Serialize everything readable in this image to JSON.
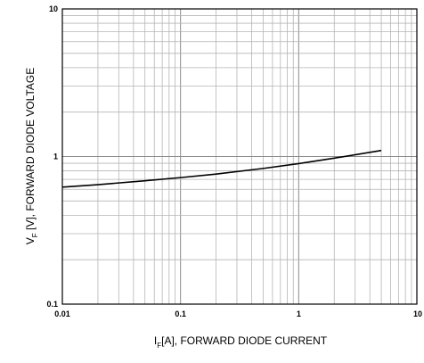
{
  "chart_data": {
    "type": "line",
    "x_scale": "log",
    "y_scale": "log",
    "xlim": [
      0.01,
      10
    ],
    "ylim": [
      0.1,
      10
    ],
    "grid": true,
    "x_ticks": [
      {
        "value": 0.01,
        "label": "0.01"
      },
      {
        "value": 0.1,
        "label": "0.1"
      },
      {
        "value": 1,
        "label": "1"
      },
      {
        "value": 10,
        "label": "10"
      }
    ],
    "y_ticks": [
      {
        "value": 0.1,
        "label": "0.1"
      },
      {
        "value": 1,
        "label": "1"
      },
      {
        "value": 10,
        "label": "10"
      }
    ],
    "xlabel": {
      "symbol": "I",
      "subscript": "F",
      "rest": "[A], FORWARD DIODE CURRENT"
    },
    "ylabel": {
      "symbol": "V",
      "subscript": "F",
      "rest": " [V], FORWARD DIODE VOLTAGE"
    },
    "series": [
      {
        "x": [
          0.01,
          0.02,
          0.05,
          0.1,
          0.2,
          0.5,
          1,
          2,
          5
        ],
        "y": [
          0.62,
          0.645,
          0.685,
          0.72,
          0.76,
          0.83,
          0.895,
          0.975,
          1.1
        ]
      }
    ]
  }
}
